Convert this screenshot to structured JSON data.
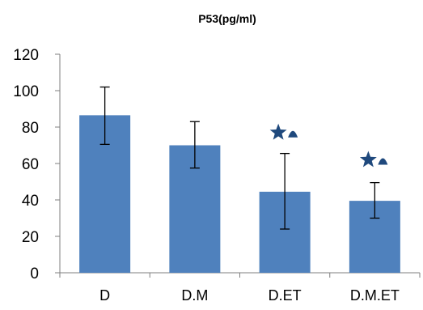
{
  "chart_data": {
    "type": "bar",
    "title": "P53(pg/ml)",
    "xlabel": "",
    "ylabel": "",
    "categories": [
      "D",
      "D.M",
      "D.ET",
      "D.M.ET"
    ],
    "values": [
      86.5,
      70,
      44.5,
      39.5
    ],
    "error_low": [
      70.5,
      57.5,
      24,
      30
    ],
    "error_high": [
      102,
      83,
      65.5,
      49.5
    ],
    "ylim": [
      0,
      120
    ],
    "yticks": [
      0,
      20,
      40,
      60,
      80,
      100,
      120
    ],
    "grid": false,
    "legend": "none",
    "bar_color": "#4f81bd",
    "annotations": [
      {
        "category": "D.ET",
        "symbols": [
          "star-icon",
          "triangle-icon"
        ],
        "y": 77
      },
      {
        "category": "D.M.ET",
        "symbols": [
          "star-icon",
          "triangle-icon"
        ],
        "y": 62
      }
    ],
    "annotation_color": "#1f497d"
  }
}
